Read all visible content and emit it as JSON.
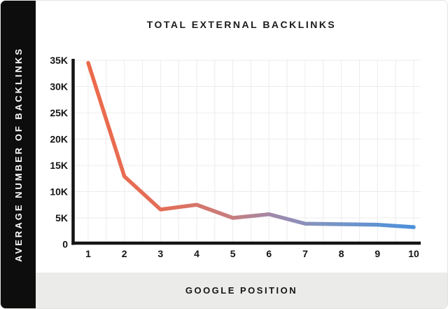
{
  "header": {
    "title": "TOTAL EXTERNAL BACKLINKS"
  },
  "sidebar": {
    "label": "AVERAGE NUMBER OF BACKLINKS"
  },
  "footer": {
    "label": "GOOGLE POSITION"
  },
  "chart_data": {
    "type": "line",
    "title": "TOTAL EXTERNAL BACKLINKS",
    "xlabel": "GOOGLE POSITION",
    "ylabel": "AVERAGE NUMBER OF BACKLINKS",
    "x": [
      1,
      2,
      3,
      4,
      5,
      6,
      7,
      8,
      9,
      10
    ],
    "x_tick_labels": [
      "1",
      "2",
      "3",
      "4",
      "5",
      "6",
      "7",
      "8",
      "9",
      "10"
    ],
    "values": [
      34500,
      12900,
      6600,
      7500,
      5000,
      5700,
      3900,
      3800,
      3700,
      3250
    ],
    "ylim": [
      0,
      35000
    ],
    "ytick_step": 5000,
    "y_tick_labels": [
      "0",
      "5K",
      "10K",
      "15K",
      "20K",
      "25K",
      "30K",
      "35K"
    ],
    "grid": true,
    "legend_position": "none",
    "line_width": 5.5,
    "line_gradient": [
      {
        "offset": 0.0,
        "color": "#EC6A4B"
      },
      {
        "offset": 0.25,
        "color": "#E26F59"
      },
      {
        "offset": 0.45,
        "color": "#C47E82"
      },
      {
        "offset": 0.58,
        "color": "#9D89AE"
      },
      {
        "offset": 0.72,
        "color": "#7E95C3"
      },
      {
        "offset": 1.0,
        "color": "#4B90DA"
      }
    ],
    "colors": {
      "axis": "#141414",
      "grid": "#ececec",
      "tick_text": "#141414",
      "sidebar_bg": "#0d0d0d",
      "footer_bg": "#ebebe9",
      "background": "#ffffff"
    }
  }
}
